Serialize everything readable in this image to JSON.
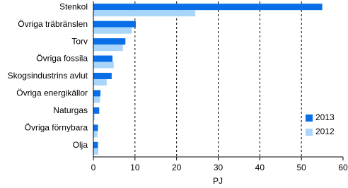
{
  "chart_data": {
    "type": "hbar",
    "categories": [
      "Stenkol",
      "Övriga träbränslen",
      "Torv",
      "Övriga fossila",
      "Skogsindustrins avlut",
      "Övriga energikällor",
      "Naturgas",
      "Övriga förnybara",
      "Olja"
    ],
    "series": [
      {
        "name": "2013",
        "color": "#0a6fe6",
        "values": [
          55,
          10.2,
          7.7,
          4.6,
          4.4,
          1.7,
          1.4,
          1.1,
          1.1
        ]
      },
      {
        "name": "2012",
        "color": "#a9d5fb",
        "values": [
          24.5,
          9.2,
          7.1,
          4.9,
          3.2,
          1.6,
          0.3,
          1.0,
          1.2
        ]
      }
    ],
    "xlabel": "PJ",
    "xlim": [
      0,
      60
    ],
    "xticks": [
      0,
      10,
      20,
      30,
      40,
      50,
      60
    ],
    "grid": true,
    "legend": "lower right"
  }
}
